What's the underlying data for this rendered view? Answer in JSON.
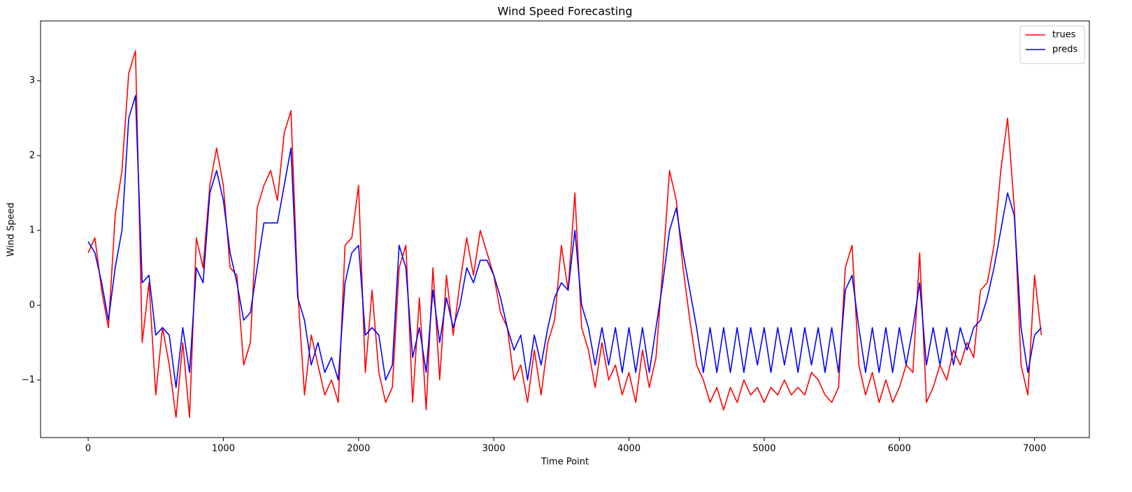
{
  "chart_data": {
    "type": "line",
    "title": "Wind Speed Forecasting",
    "xlabel": "Time Point",
    "ylabel": "Wind Speed",
    "x": [
      0,
      50,
      100,
      150,
      200,
      250,
      300,
      350,
      400,
      450,
      500,
      550,
      600,
      650,
      700,
      750,
      800,
      850,
      900,
      950,
      1000,
      1050,
      1100,
      1150,
      1200,
      1250,
      1300,
      1350,
      1400,
      1450,
      1500,
      1550,
      1600,
      1650,
      1700,
      1750,
      1800,
      1850,
      1900,
      1950,
      2000,
      2050,
      2100,
      2150,
      2200,
      2250,
      2300,
      2350,
      2400,
      2450,
      2500,
      2550,
      2600,
      2650,
      2700,
      2750,
      2800,
      2850,
      2900,
      2950,
      3000,
      3050,
      3100,
      3150,
      3200,
      3250,
      3300,
      3350,
      3400,
      3450,
      3500,
      3550,
      3600,
      3650,
      3700,
      3750,
      3800,
      3850,
      3900,
      3950,
      4000,
      4050,
      4100,
      4150,
      4200,
      4250,
      4300,
      4350,
      4400,
      4450,
      4500,
      4550,
      4600,
      4650,
      4700,
      4750,
      4800,
      4850,
      4900,
      4950,
      5000,
      5050,
      5100,
      5150,
      5200,
      5250,
      5300,
      5350,
      5400,
      5450,
      5500,
      5550,
      5600,
      5650,
      5700,
      5750,
      5800,
      5850,
      5900,
      5950,
      6000,
      6050,
      6100,
      6150,
      6200,
      6250,
      6300,
      6350,
      6400,
      6450,
      6500,
      6550,
      6600,
      6650,
      6700,
      6750,
      6800,
      6850,
      6900,
      6950,
      7000,
      7050
    ],
    "series": [
      {
        "name": "trues",
        "color": "#ff0000",
        "values": [
          0.7,
          0.9,
          0.2,
          -0.3,
          1.2,
          1.8,
          3.1,
          3.4,
          -0.5,
          0.3,
          -1.2,
          -0.3,
          -0.8,
          -1.5,
          -0.5,
          -1.5,
          0.9,
          0.5,
          1.6,
          2.1,
          1.6,
          0.5,
          0.4,
          -0.8,
          -0.5,
          1.3,
          1.6,
          1.8,
          1.4,
          2.3,
          2.6,
          0.2,
          -1.2,
          -0.4,
          -0.8,
          -1.2,
          -1.0,
          -1.3,
          0.8,
          0.9,
          1.6,
          -0.9,
          0.2,
          -0.9,
          -1.3,
          -1.1,
          0.5,
          0.8,
          -1.3,
          0.1,
          -1.4,
          0.5,
          -1.0,
          0.4,
          -0.4,
          0.3,
          0.9,
          0.4,
          1.0,
          0.7,
          0.4,
          -0.1,
          -0.3,
          -1.0,
          -0.8,
          -1.3,
          -0.6,
          -1.2,
          -0.5,
          -0.2,
          0.8,
          0.2,
          1.5,
          -0.3,
          -0.6,
          -1.1,
          -0.5,
          -1.0,
          -0.8,
          -1.2,
          -0.9,
          -1.3,
          -0.6,
          -1.1,
          -0.7,
          0.5,
          1.8,
          1.4,
          0.5,
          -0.2,
          -0.8,
          -1.0,
          -1.3,
          -1.1,
          -1.4,
          -1.1,
          -1.3,
          -1.0,
          -1.2,
          -1.1,
          -1.3,
          -1.1,
          -1.2,
          -1.0,
          -1.2,
          -1.1,
          -1.2,
          -0.9,
          -1.0,
          -1.2,
          -1.3,
          -1.1,
          0.5,
          0.8,
          -0.8,
          -1.2,
          -0.9,
          -1.3,
          -1.0,
          -1.3,
          -1.1,
          -0.8,
          -0.9,
          0.7,
          -1.3,
          -1.1,
          -0.8,
          -1.0,
          -0.6,
          -0.8,
          -0.5,
          -0.7,
          0.2,
          0.3,
          0.8,
          1.8,
          2.5,
          1.3,
          -0.8,
          -1.2,
          0.4,
          -0.4
        ]
      },
      {
        "name": "preds",
        "color": "#0000ff",
        "values": [
          0.85,
          0.7,
          0.3,
          -0.2,
          0.5,
          1.0,
          2.5,
          2.8,
          0.3,
          0.4,
          -0.4,
          -0.3,
          -0.4,
          -1.1,
          -0.3,
          -0.9,
          0.5,
          0.3,
          1.5,
          1.8,
          1.4,
          0.7,
          0.3,
          -0.2,
          -0.1,
          0.5,
          1.1,
          1.1,
          1.1,
          1.6,
          2.1,
          0.1,
          -0.2,
          -0.8,
          -0.5,
          -0.9,
          -0.7,
          -1.0,
          0.3,
          0.7,
          0.8,
          -0.4,
          -0.3,
          -0.4,
          -1.0,
          -0.8,
          0.8,
          0.5,
          -0.7,
          -0.3,
          -0.9,
          0.2,
          -0.5,
          0.1,
          -0.3,
          0.0,
          0.5,
          0.3,
          0.6,
          0.6,
          0.4,
          0.1,
          -0.3,
          -0.6,
          -0.4,
          -1.0,
          -0.4,
          -0.8,
          -0.3,
          0.1,
          0.3,
          0.2,
          1.0,
          0.0,
          -0.3,
          -0.8,
          -0.3,
          -0.8,
          -0.3,
          -0.9,
          -0.3,
          -0.9,
          -0.3,
          -0.9,
          -0.3,
          0.3,
          1.0,
          1.3,
          0.7,
          0.2,
          -0.3,
          -0.9,
          -0.3,
          -0.9,
          -0.3,
          -0.9,
          -0.3,
          -0.9,
          -0.3,
          -0.8,
          -0.3,
          -0.9,
          -0.3,
          -0.8,
          -0.3,
          -0.9,
          -0.3,
          -0.8,
          -0.3,
          -0.9,
          -0.3,
          -0.9,
          0.2,
          0.4,
          -0.3,
          -0.9,
          -0.3,
          -0.9,
          -0.3,
          -0.9,
          -0.3,
          -0.8,
          -0.3,
          0.3,
          -0.8,
          -0.3,
          -0.8,
          -0.3,
          -0.8,
          -0.3,
          -0.6,
          -0.3,
          -0.2,
          0.1,
          0.5,
          1.0,
          1.5,
          1.2,
          -0.3,
          -0.9,
          -0.4,
          -0.3
        ]
      }
    ],
    "xlim": [
      -352,
      7405
    ],
    "ylim": [
      -1.77,
      3.8
    ],
    "xticks": [
      0,
      1000,
      2000,
      3000,
      4000,
      5000,
      6000,
      7000
    ],
    "yticks": [
      {
        "value": -1,
        "label": "−1"
      },
      0,
      1,
      2,
      3
    ],
    "legend": "upper right"
  }
}
